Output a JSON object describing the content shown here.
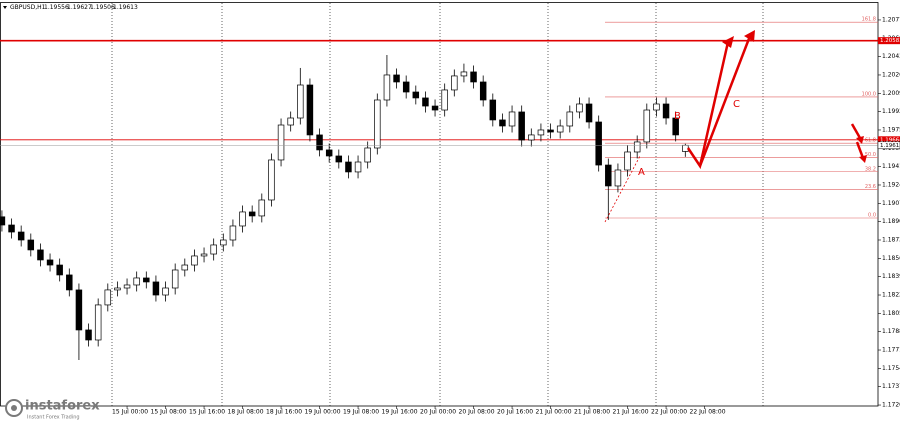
{
  "chart_data": {
    "type": "candlestick",
    "symbol": "GBPUSD,H1",
    "ohlc": [
      [
        1.1895,
        1.1901,
        1.18814,
        1.18874
      ],
      [
        1.18874,
        1.18934,
        1.18749,
        1.18809
      ],
      [
        1.18809,
        1.18869,
        1.18675,
        1.18735
      ],
      [
        1.18735,
        1.18795,
        1.18583,
        1.18643
      ],
      [
        1.18643,
        1.18703,
        1.1849,
        1.1855
      ],
      [
        1.1855,
        1.1861,
        1.18443,
        1.18503
      ],
      [
        1.18503,
        1.18563,
        1.18351,
        1.18411
      ],
      [
        1.18411,
        1.18471,
        1.18212,
        1.18272
      ],
      [
        1.18272,
        1.18332,
        1.17623,
        1.17901
      ],
      [
        1.17901,
        1.17961,
        1.17748,
        1.17808
      ],
      [
        1.17808,
        1.18193,
        1.17748,
        1.18133
      ],
      [
        1.18133,
        1.18332,
        1.18073,
        1.18272
      ],
      [
        1.18272,
        1.1835,
        1.18212,
        1.1829
      ],
      [
        1.1829,
        1.18378,
        1.1823,
        1.18318
      ],
      [
        1.18318,
        1.18443,
        1.18258,
        1.18383
      ],
      [
        1.18383,
        1.18443,
        1.18286,
        1.18346
      ],
      [
        1.18346,
        1.18406,
        1.18165,
        1.18225
      ],
      [
        1.18225,
        1.1835,
        1.18165,
        1.1829
      ],
      [
        1.1829,
        1.18517,
        1.1823,
        1.18457
      ],
      [
        1.18457,
        1.18563,
        1.18397,
        1.18503
      ],
      [
        1.18503,
        1.18647,
        1.18443,
        1.18587
      ],
      [
        1.18587,
        1.18665,
        1.18527,
        1.18605
      ],
      [
        1.18605,
        1.18749,
        1.18545,
        1.18689
      ],
      [
        1.18689,
        1.18795,
        1.18629,
        1.18735
      ],
      [
        1.18735,
        1.18925,
        1.18675,
        1.18865
      ],
      [
        1.18865,
        1.19055,
        1.18805,
        1.18995
      ],
      [
        1.18995,
        1.19055,
        1.18898,
        1.18958
      ],
      [
        1.18958,
        1.19166,
        1.18898,
        1.19106
      ],
      [
        1.19106,
        1.19537,
        1.19046,
        1.19477
      ],
      [
        1.19477,
        1.19861,
        1.19417,
        1.19801
      ],
      [
        1.19801,
        1.19926,
        1.19741,
        1.19866
      ],
      [
        1.19866,
        1.2033,
        1.19806,
        1.20172
      ],
      [
        1.20172,
        1.20232,
        1.19649,
        1.19709
      ],
      [
        1.19709,
        1.19769,
        1.1951,
        1.1957
      ],
      [
        1.1957,
        1.1963,
        1.19454,
        1.19514
      ],
      [
        1.19514,
        1.19574,
        1.19398,
        1.19458
      ],
      [
        1.19458,
        1.19518,
        1.19306,
        1.19366
      ],
      [
        1.19366,
        1.19518,
        1.19306,
        1.19458
      ],
      [
        1.19458,
        1.19648,
        1.19398,
        1.19588
      ],
      [
        1.19588,
        1.20093,
        1.19528,
        1.20033
      ],
      [
        1.20033,
        1.2045,
        1.19973,
        1.20265
      ],
      [
        1.20265,
        1.20325,
        1.2014,
        1.202
      ],
      [
        1.202,
        1.2026,
        1.20047,
        1.20107
      ],
      [
        1.20107,
        1.20167,
        1.19992,
        1.20052
      ],
      [
        1.20052,
        1.20112,
        1.19917,
        1.19977
      ],
      [
        1.19977,
        1.20037,
        1.1988,
        1.1994
      ],
      [
        1.1994,
        1.20186,
        1.1988,
        1.20126
      ],
      [
        1.20126,
        1.20316,
        1.20066,
        1.20256
      ],
      [
        1.20256,
        1.2037,
        1.20196,
        1.20293
      ],
      [
        1.20293,
        1.20353,
        1.2014,
        1.202
      ],
      [
        1.202,
        1.2026,
        1.19973,
        1.20033
      ],
      [
        1.20033,
        1.20093,
        1.19788,
        1.19848
      ],
      [
        1.19848,
        1.19908,
        1.19732,
        1.19792
      ],
      [
        1.19792,
        1.19982,
        1.19732,
        1.19922
      ],
      [
        1.19922,
        1.19982,
        1.19602,
        1.19662
      ],
      [
        1.19662,
        1.19769,
        1.19602,
        1.19709
      ],
      [
        1.19709,
        1.19815,
        1.19649,
        1.19755
      ],
      [
        1.19755,
        1.19815,
        1.19676,
        1.19736
      ],
      [
        1.19736,
        1.19852,
        1.19676,
        1.19792
      ],
      [
        1.19792,
        1.19982,
        1.19732,
        1.19922
      ],
      [
        1.19922,
        1.20056,
        1.19862,
        1.19996
      ],
      [
        1.19996,
        1.20056,
        1.19769,
        1.19829
      ],
      [
        1.19829,
        1.19889,
        1.1937,
        1.1943
      ],
      [
        1.1943,
        1.1949,
        1.18921,
        1.19236
      ],
      [
        1.19236,
        1.19444,
        1.19176,
        1.19384
      ],
      [
        1.19384,
        1.19611,
        1.19324,
        1.19551
      ],
      [
        1.19551,
        1.19704,
        1.19491,
        1.19644
      ],
      [
        1.19644,
        1.2,
        1.19584,
        1.1994
      ],
      [
        1.1994,
        1.20056,
        1.1988,
        1.19996
      ],
      [
        1.19996,
        1.20056,
        1.19806,
        1.19866
      ],
      [
        1.19866,
        1.19926,
        1.19649,
        1.19709
      ],
      [
        1.19556,
        1.19627,
        1.19506,
        1.19613
      ]
    ],
    "xlim": [
      -0.2,
      91.02
    ],
    "xticks": [
      {
        "value": 13,
        "label": "15 Jul 00:00"
      },
      {
        "value": 17,
        "label": "15 Jul 08:00"
      },
      {
        "value": 21,
        "label": "15 Jul 16:00"
      },
      {
        "value": 25,
        "label": "18 Jul 08:00"
      },
      {
        "value": 29,
        "label": "18 Jul 16:00"
      },
      {
        "value": 33,
        "label": "19 Jul 00:00"
      },
      {
        "value": 37,
        "label": "19 Jul 08:00"
      },
      {
        "value": 41,
        "label": "19 Jul 16:00"
      },
      {
        "value": 45,
        "label": "20 Jul 00:00"
      },
      {
        "value": 49,
        "label": "20 Jul 08:00"
      },
      {
        "value": 53,
        "label": "20 Jul 16:00"
      },
      {
        "value": 57,
        "label": "21 Jul 00:00"
      },
      {
        "value": 61,
        "label": "21 Jul 08:00"
      },
      {
        "value": 65,
        "label": "21 Jul 16:00"
      },
      {
        "value": 69,
        "label": "22 Jul 00:00"
      },
      {
        "value": 73,
        "label": "22 Jul 08:00"
      }
    ],
    "ylim": [
      1.17196,
      1.2096
    ],
    "yticks": [
      1.20775,
      1.20605,
      1.20435,
      1.20265,
      1.20095,
      1.19925,
      1.19755,
      1.19585,
      1.19415,
      1.19245,
      1.19075,
      1.18905,
      1.18735,
      1.18565,
      1.18395,
      1.18225,
      1.18055,
      1.17885,
      1.17715,
      1.17545,
      1.17375,
      1.17205
    ],
    "hlines": [
      {
        "value": 1.20583,
        "color": "#e00000"
      },
      {
        "value": 1.19664,
        "color": "#e00000"
      }
    ],
    "fibo": {
      "low": 1.18939,
      "high": 1.20061,
      "color": "#e06060",
      "levels": [
        161.8,
        {
          "value": 100,
          "label": "100.0"
        },
        61.8,
        {
          "value": 50,
          "label": "50.0"
        },
        38.2,
        23.6,
        {
          "value": 0,
          "label": "0.0"
        }
      ]
    },
    "annotations": [
      "A",
      "B",
      "C"
    ]
  },
  "brand": {
    "name": "instaforex",
    "tagline": "Instant Forex Trading"
  }
}
